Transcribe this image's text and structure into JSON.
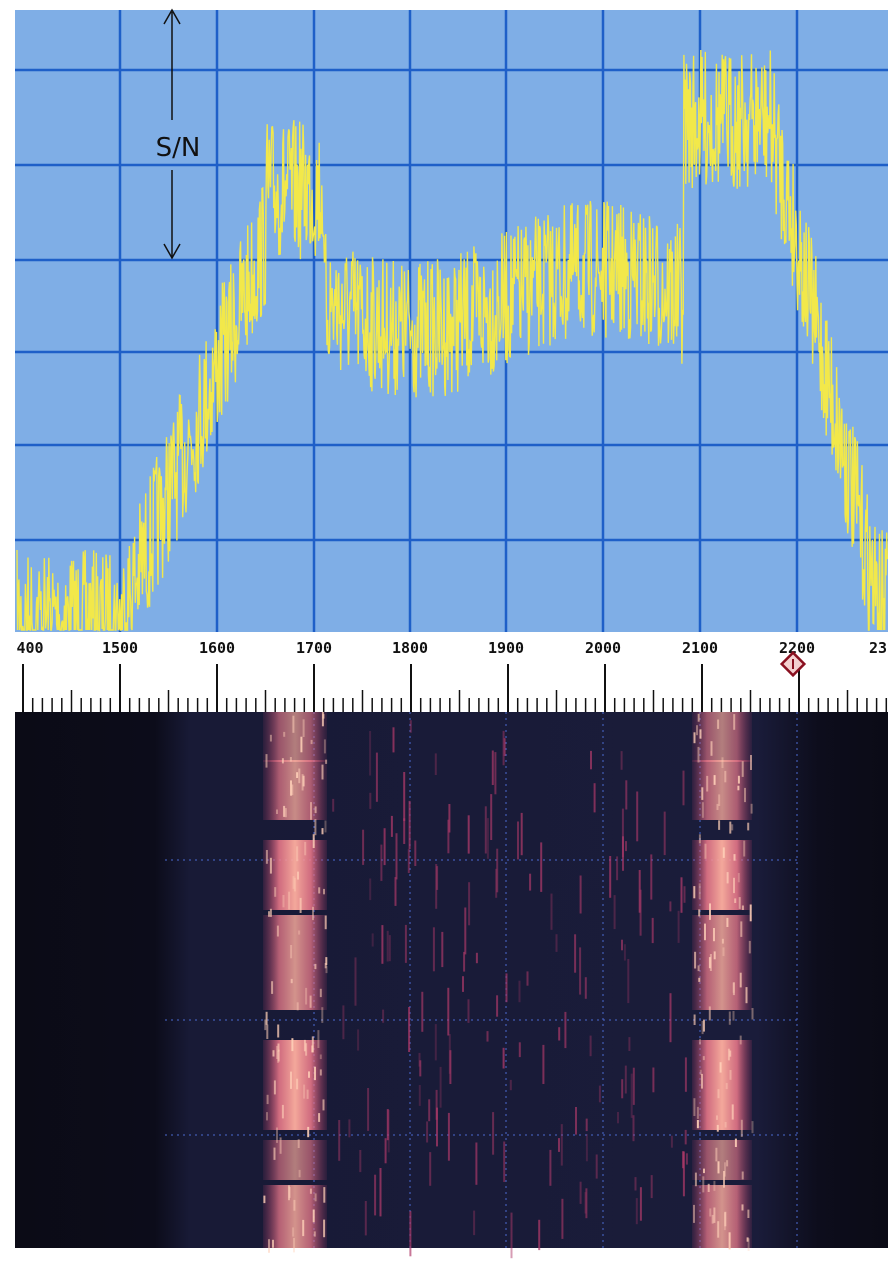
{
  "annotation": "S/N",
  "scale": {
    "labels": [
      "400",
      "1500",
      "1600",
      "1700",
      "1800",
      "1900",
      "2000",
      "2100",
      "2200",
      "23"
    ]
  }
}
